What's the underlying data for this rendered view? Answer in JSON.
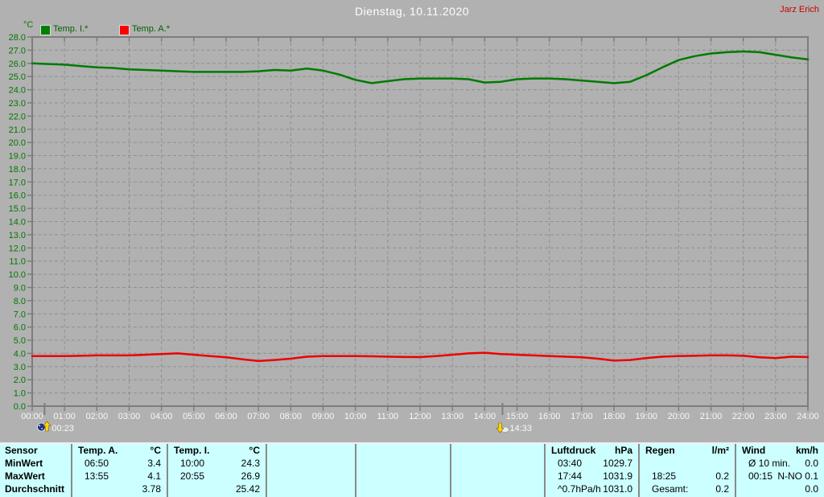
{
  "header": {
    "title": "Dienstag, 10.11.2020",
    "user": "Jarz Erich"
  },
  "y_axis_unit": "°C",
  "legend": [
    {
      "label": "Temp. I.*",
      "color": "#008000"
    },
    {
      "label": "Temp. A.*",
      "color": "#ff0000"
    }
  ],
  "colors": {
    "background": "#b1b1b1",
    "frame": "#7d7d7d",
    "grid": "#8f8f8f",
    "y_labels": "#007800",
    "x_labels": "#f8f8f8",
    "title": "#ffffff",
    "user": "#cc0000",
    "table_bg": "#ccffff",
    "marker_arrow": "#ffd800"
  },
  "chart_data": {
    "type": "line",
    "title": "Dienstag, 10.11.2020",
    "ylabel": "°C",
    "ylim": [
      0,
      28
    ],
    "y_tick_step": 1.0,
    "grid": true,
    "legend_position": "top-left",
    "x_hours": [
      0,
      0.5,
      1,
      1.5,
      2,
      2.5,
      3,
      3.5,
      4,
      4.5,
      5,
      5.5,
      6,
      6.5,
      7,
      7.5,
      8,
      8.5,
      9,
      9.5,
      10,
      10.5,
      11,
      11.5,
      12,
      12.5,
      13,
      13.5,
      14,
      14.5,
      15,
      15.5,
      16,
      16.5,
      17,
      17.5,
      18,
      18.5,
      19,
      19.5,
      20,
      20.5,
      21,
      21.5,
      22,
      22.5,
      23,
      23.5,
      24
    ],
    "x_tick_labels": [
      "00:00",
      "01:00",
      "02:00",
      "03:00",
      "04:00",
      "05:00",
      "06:00",
      "07:00",
      "08:00",
      "09:00",
      "10:00",
      "11:00",
      "12:00",
      "13:00",
      "14:00",
      "15:00",
      "16:00",
      "17:00",
      "18:00",
      "19:00",
      "20:00",
      "21:00",
      "22:00",
      "23:00",
      "24:00"
    ],
    "series": [
      {
        "name": "Temp. I.*",
        "color": "#007a00",
        "values": [
          26.0,
          25.95,
          25.9,
          25.8,
          25.7,
          25.65,
          25.55,
          25.5,
          25.45,
          25.4,
          25.35,
          25.35,
          25.35,
          25.35,
          25.4,
          25.5,
          25.45,
          25.6,
          25.45,
          25.15,
          24.75,
          24.5,
          24.65,
          24.8,
          24.85,
          24.85,
          24.85,
          24.8,
          24.55,
          24.6,
          24.8,
          24.85,
          24.85,
          24.8,
          24.7,
          24.6,
          24.5,
          24.6,
          25.1,
          25.7,
          26.25,
          26.55,
          26.75,
          26.85,
          26.9,
          26.85,
          26.65,
          26.45,
          26.3
        ]
      },
      {
        "name": "Temp. A.*",
        "color": "#ee0000",
        "values": [
          3.8,
          3.8,
          3.8,
          3.82,
          3.85,
          3.85,
          3.85,
          3.9,
          3.95,
          4.0,
          3.9,
          3.8,
          3.7,
          3.55,
          3.42,
          3.5,
          3.6,
          3.75,
          3.8,
          3.8,
          3.8,
          3.78,
          3.75,
          3.73,
          3.72,
          3.8,
          3.9,
          4.0,
          4.05,
          3.95,
          3.9,
          3.85,
          3.8,
          3.75,
          3.7,
          3.6,
          3.45,
          3.5,
          3.65,
          3.75,
          3.8,
          3.82,
          3.85,
          3.85,
          3.82,
          3.7,
          3.65,
          3.75,
          3.72
        ]
      }
    ],
    "markers": [
      {
        "label": "00:23",
        "hour": 0.383,
        "type": "moonrise"
      },
      {
        "label": "14:33",
        "hour": 14.55,
        "type": "moonset"
      }
    ]
  },
  "stats_table": {
    "row_labels": [
      "Sensor",
      "MinWert",
      "MaxWert",
      "Durchschnitt"
    ],
    "columns": [
      {
        "name": "Temp. A.",
        "unit": "°C",
        "rows": [
          [
            "06:50",
            "3.4"
          ],
          [
            "13:55",
            "4.1"
          ],
          [
            "",
            "3.78"
          ]
        ]
      },
      {
        "name": "Temp. I.",
        "unit": "°C",
        "rows": [
          [
            "10:00",
            "24.3"
          ],
          [
            "20:55",
            "26.9"
          ],
          [
            "",
            "25.42"
          ]
        ]
      },
      {
        "name": "",
        "unit": "",
        "rows": [
          [
            "",
            ""
          ],
          [
            "",
            ""
          ],
          [
            "",
            ""
          ]
        ]
      },
      {
        "name": "",
        "unit": "",
        "rows": [
          [
            "",
            ""
          ],
          [
            "",
            ""
          ],
          [
            "",
            ""
          ]
        ]
      },
      {
        "name": "",
        "unit": "",
        "rows": [
          [
            "",
            ""
          ],
          [
            "",
            ""
          ],
          [
            "",
            ""
          ]
        ]
      },
      {
        "name": "Luftdruck",
        "unit": "hPa",
        "rows": [
          [
            "03:40",
            "1029.7"
          ],
          [
            "17:44",
            "1031.9"
          ],
          [
            "^0.7hPa/h",
            "1031.0"
          ]
        ]
      },
      {
        "name": "Regen",
        "unit": "l/m²",
        "rows": [
          [
            "",
            ""
          ],
          [
            "18:25",
            "0.2"
          ],
          [
            "Gesamt:",
            "0.2"
          ]
        ]
      },
      {
        "name": "Wind",
        "unit": "km/h",
        "rows": [
          [
            "Ø 10 min.",
            "0.0"
          ],
          [
            "00:15",
            "N-NO 0.1"
          ],
          [
            "",
            "0.0"
          ]
        ]
      }
    ]
  }
}
